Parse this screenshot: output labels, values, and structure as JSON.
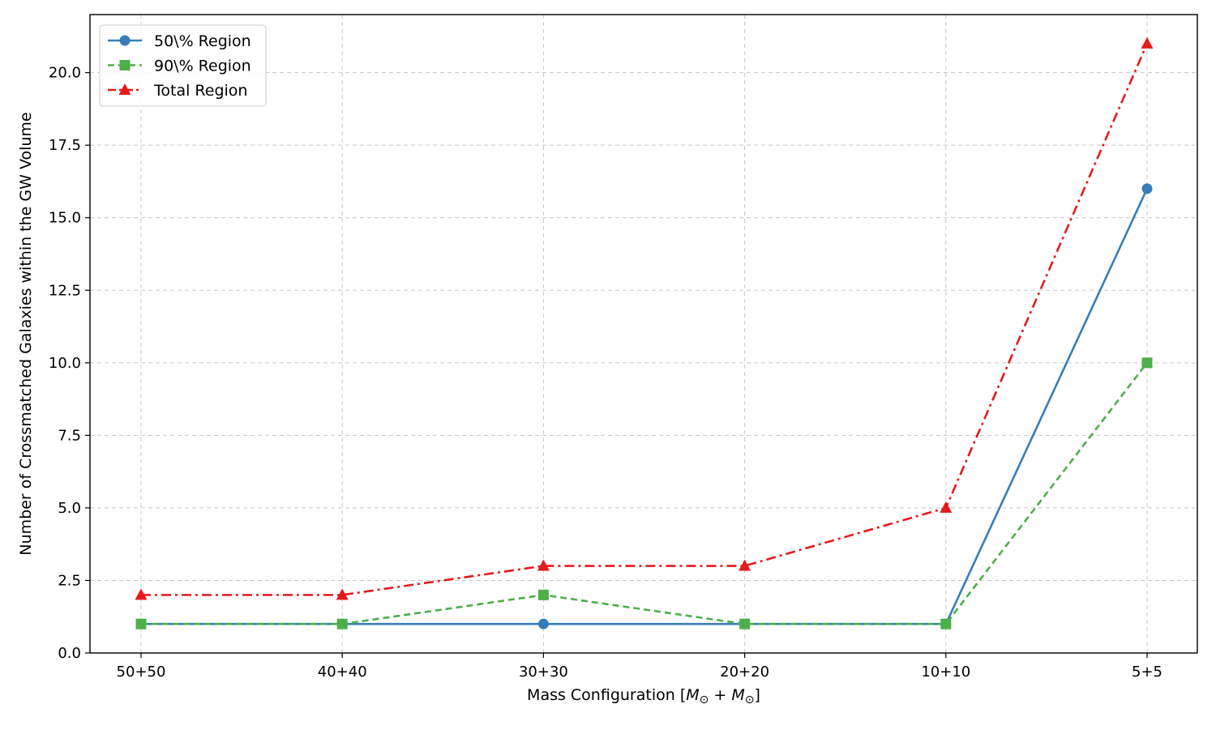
{
  "chart_data": {
    "type": "line",
    "categories": [
      "50+50",
      "40+40",
      "30+30",
      "20+20",
      "10+10",
      "5+5"
    ],
    "xlabel_parts": [
      "Mass Configuration [",
      "M",
      "⊙",
      " + ",
      "M",
      "⊙",
      "]"
    ],
    "ylabel": "Number of Crossmatched Galaxies within the GW Volume",
    "ylim": [
      0,
      22
    ],
    "yticks": [
      0.0,
      2.5,
      5.0,
      7.5,
      10.0,
      12.5,
      15.0,
      17.5,
      20.0
    ],
    "ytick_labels": [
      "0.0",
      "2.5",
      "5.0",
      "7.5",
      "10.0",
      "12.5",
      "15.0",
      "17.5",
      "20.0"
    ],
    "grid": true,
    "legend_position": "upper-left",
    "series": [
      {
        "name": "50\\% Region",
        "values": [
          1,
          1,
          1,
          1,
          1,
          16
        ],
        "color": "#377eb8",
        "marker": "circle",
        "linestyle": "solid"
      },
      {
        "name": "90\\% Region",
        "values": [
          1,
          1,
          2,
          1,
          1,
          10
        ],
        "color": "#4daf4a",
        "marker": "square",
        "linestyle": "dashed"
      },
      {
        "name": "Total Region",
        "values": [
          2,
          2,
          3,
          3,
          5,
          21
        ],
        "color": "#e41a1c",
        "marker": "triangle",
        "linestyle": "dashdot"
      }
    ]
  }
}
